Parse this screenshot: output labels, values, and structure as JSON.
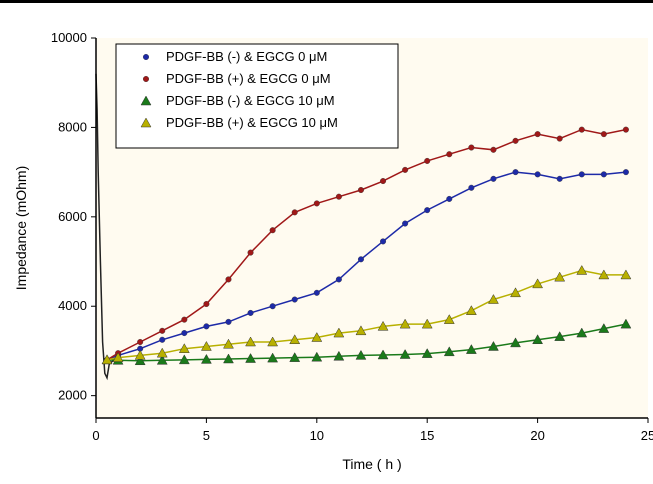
{
  "chart_data": {
    "type": "scatter",
    "xlabel": "Time ( h )",
    "ylabel": "Impedance (mOhm)",
    "xlim": [
      0,
      25
    ],
    "ylim": [
      1500,
      10000
    ],
    "xticks": [
      "0",
      "5",
      "10",
      "15",
      "20",
      "25"
    ],
    "yticks": [
      "2000",
      "4000",
      "6000",
      "8000",
      "10000"
    ],
    "plot_background": "#fffbf0",
    "legend_position": "top-left",
    "series": [
      {
        "name": "PDGF-BB (-) & EGCG 0 μM",
        "color": "#1d2aa8",
        "marker": "circle",
        "x": [
          0.5,
          1,
          2,
          3,
          4,
          5,
          6,
          7,
          8,
          9,
          10,
          11,
          12,
          13,
          14,
          15,
          16,
          17,
          18,
          19,
          20,
          21,
          22,
          23,
          24
        ],
        "y": [
          2800,
          2900,
          3050,
          3250,
          3400,
          3550,
          3650,
          3850,
          4000,
          4150,
          4300,
          4600,
          5050,
          5450,
          5850,
          6150,
          6400,
          6650,
          6850,
          7000,
          6950,
          6850,
          6950,
          6950,
          7000
        ]
      },
      {
        "name": "PDGF-BB (+) & EGCG 0 μM",
        "color": "#a01818",
        "marker": "circle",
        "x": [
          0.5,
          1,
          2,
          3,
          4,
          5,
          6,
          7,
          8,
          9,
          10,
          11,
          12,
          13,
          14,
          15,
          16,
          17,
          18,
          19,
          20,
          21,
          22,
          23,
          24
        ],
        "y": [
          2800,
          2950,
          3200,
          3450,
          3700,
          4050,
          4600,
          5200,
          5700,
          6100,
          6300,
          6450,
          6600,
          6800,
          7050,
          7250,
          7400,
          7550,
          7500,
          7700,
          7850,
          7750,
          7950,
          7850,
          7950
        ]
      },
      {
        "name": "PDGF-BB (-) & EGCG 10 μM",
        "color": "#1a7a1a",
        "marker": "triangle",
        "x": [
          0.5,
          1,
          2,
          3,
          4,
          5,
          6,
          7,
          8,
          9,
          10,
          11,
          12,
          13,
          14,
          15,
          16,
          17,
          18,
          19,
          20,
          21,
          22,
          23,
          24
        ],
        "y": [
          2800,
          2790,
          2780,
          2790,
          2800,
          2810,
          2820,
          2830,
          2840,
          2850,
          2860,
          2880,
          2900,
          2910,
          2920,
          2940,
          2980,
          3030,
          3100,
          3180,
          3250,
          3320,
          3400,
          3500,
          3600
        ]
      },
      {
        "name": "PDGF-BB (+) & EGCG 10 μM",
        "color": "#b8b000",
        "marker": "triangle",
        "x": [
          0.5,
          1,
          2,
          3,
          4,
          5,
          6,
          7,
          8,
          9,
          10,
          11,
          12,
          13,
          14,
          15,
          16,
          17,
          18,
          19,
          20,
          21,
          22,
          23,
          24
        ],
        "y": [
          2800,
          2850,
          2900,
          2950,
          3050,
          3100,
          3150,
          3200,
          3200,
          3250,
          3300,
          3400,
          3450,
          3550,
          3600,
          3600,
          3700,
          3900,
          4150,
          4300,
          4500,
          4650,
          4800,
          4700,
          4700
        ]
      }
    ],
    "baseline": {
      "x": [
        0,
        0.05,
        0.1,
        0.2,
        0.3,
        0.4,
        0.5,
        0.6,
        0.8,
        1.0
      ],
      "y": [
        9200,
        8400,
        7000,
        5000,
        3200,
        2500,
        2400,
        2700,
        2800,
        2800
      ]
    }
  }
}
